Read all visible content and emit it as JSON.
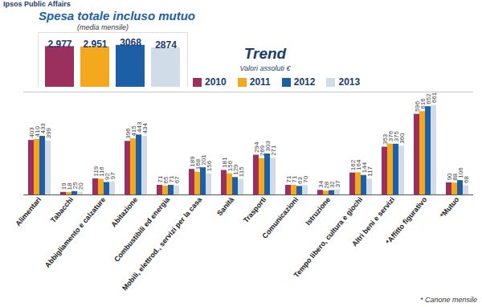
{
  "chart_data": [
    {
      "type": "bar",
      "title": "Spesa totale incluso mutuo",
      "subtitle": "(media mensile)",
      "annotations": [
        "Ipsos Public Affairs"
      ],
      "categories": [
        null,
        null,
        null,
        null
      ],
      "values": [
        2977,
        2951,
        3068,
        2874
      ],
      "value_labels": [
        "2.977",
        "2.951",
        "3068",
        "2874"
      ],
      "colors": [
        "#9b2f5e",
        "#f4a81d",
        "#1d5fa6",
        "#d0dce8"
      ],
      "ylim": [
        0,
        4000
      ],
      "yticks": [],
      "tick_labels": false,
      "data_labels": true
    },
    {
      "type": "bar",
      "title": "Trend",
      "subtitle": "Valori assoluti €",
      "annotations": [
        "* Canone mensile"
      ],
      "categories": [
        "Alimentari",
        "Tabacchi",
        "Abbigliamento e calzature",
        "Abitazione",
        "Combustibili ed energia",
        "Mobili, elettrod., servizi per la casa",
        "Sanità",
        "Trasporti",
        "Comunicazioni",
        "Istruzione",
        "Tempo libero, cultura e giochi",
        "Altri beni e servizi",
        "*Affitto figurativo",
        "*Mutuo"
      ],
      "series": [
        {
          "name": "2010",
          "color": "#9b2f5e",
          "values": [
            403,
            19,
            119,
            396,
            71,
            189,
            181,
            294,
            71,
            34,
            162,
            353,
            596,
            90
          ]
        },
        {
          "name": "2011",
          "color": "#f4a81d",
          "values": [
            410,
            18,
            116,
            415,
            65,
            168,
            156,
            269,
            71,
            28,
            164,
            376,
            616,
            88
          ]
        },
        {
          "name": "2012",
          "color": "#1d5fa6",
          "values": [
            433,
            25,
            92,
            443,
            71,
            201,
            129,
            303,
            63,
            32,
            144,
            375,
            652,
            106
          ]
        },
        {
          "name": "2013",
          "color": "#d0dce8",
          "values": [
            399,
            20,
            97,
            434,
            67,
            156,
            115,
            271,
            70,
            37,
            117,
            360,
            661,
            68
          ]
        }
      ],
      "ylim": [
        0,
        760
      ],
      "yticks": [],
      "tick_labels": "x",
      "legend": "top",
      "data_labels": true
    }
  ]
}
